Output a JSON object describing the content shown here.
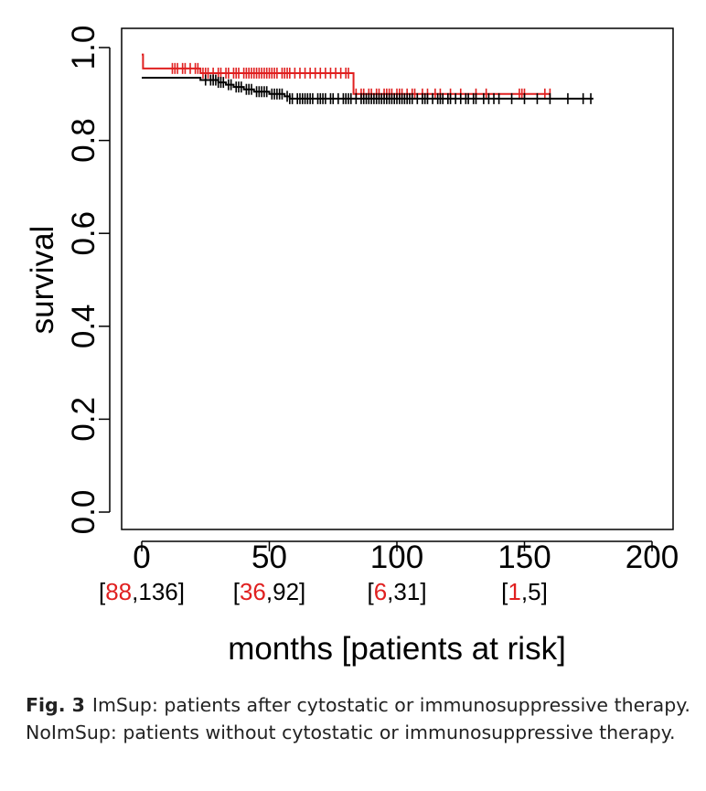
{
  "chart_data": {
    "type": "line",
    "subtype": "kaplan-meier survival curve",
    "ylabel": "survival",
    "xlabel": "months [patients at risk]",
    "xlim": [
      0,
      200
    ],
    "ylim": [
      0.0,
      1.0
    ],
    "x_ticks": [
      0,
      50,
      100,
      150,
      200
    ],
    "y_ticks": [
      0.0,
      0.2,
      0.4,
      0.6,
      0.8,
      1.0
    ],
    "y_tick_labels": [
      "0.0",
      "0.2",
      "0.4",
      "0.6",
      "0.8",
      "1.0"
    ],
    "x_tick_labels": [
      "0",
      "50",
      "100",
      "150",
      "200"
    ],
    "at_risk": [
      {
        "x": 0,
        "red": "88",
        "black": "136"
      },
      {
        "x": 50,
        "red": "36",
        "black": "92"
      },
      {
        "x": 100,
        "red": "6",
        "black": "31"
      },
      {
        "x": 150,
        "red": "1",
        "black": "5"
      }
    ],
    "grid": false,
    "legend": "none",
    "series": [
      {
        "color": "#e02020",
        "steps": [
          [
            0,
            0.985
          ],
          [
            0.5,
            0.955
          ],
          [
            23,
            0.945
          ],
          [
            83,
            0.9
          ],
          [
            150,
            0.9
          ]
        ],
        "end": 160,
        "censor": [
          12,
          13,
          14,
          16,
          17,
          19,
          21,
          22,
          24,
          25,
          26,
          28,
          30,
          31,
          33,
          34,
          36,
          37,
          38,
          40,
          41,
          42,
          43,
          44,
          45,
          46,
          47,
          48,
          49,
          50,
          51,
          52,
          53,
          55,
          56,
          57,
          58,
          60,
          62,
          64,
          66,
          68,
          70,
          72,
          74,
          76,
          78,
          80,
          81,
          84,
          86,
          87,
          89,
          90,
          92,
          93,
          95,
          96,
          97,
          98,
          100,
          101,
          102,
          104,
          106,
          107,
          110,
          112,
          115,
          117,
          121,
          125,
          131,
          135,
          148,
          149,
          150,
          158,
          160
        ]
      },
      {
        "color": "#000000",
        "steps": [
          [
            0,
            0.935
          ],
          [
            23,
            0.93
          ],
          [
            30,
            0.925
          ],
          [
            33,
            0.92
          ],
          [
            36,
            0.915
          ],
          [
            40,
            0.91
          ],
          [
            44,
            0.905
          ],
          [
            50,
            0.9
          ],
          [
            56,
            0.895
          ],
          [
            58,
            0.89
          ],
          [
            160,
            0.89
          ]
        ],
        "end": 177,
        "censor": [
          25,
          27,
          28,
          29,
          30,
          31,
          32,
          34,
          35,
          37,
          38,
          39,
          41,
          42,
          43,
          45,
          46,
          47,
          48,
          49,
          51,
          52,
          53,
          54,
          55,
          57,
          58,
          59,
          61,
          62,
          63,
          64,
          65,
          66,
          67,
          69,
          70,
          71,
          72,
          74,
          75,
          77,
          79,
          80,
          81,
          82,
          84,
          86,
          87,
          88,
          89,
          90,
          91,
          92,
          93,
          94,
          95,
          96,
          97,
          98,
          99,
          100,
          101,
          102,
          103,
          104,
          105,
          106,
          108,
          110,
          111,
          112,
          114,
          116,
          117,
          118,
          120,
          121,
          123,
          125,
          127,
          128,
          130,
          131,
          134,
          136,
          138,
          140,
          145,
          150,
          155,
          160,
          167,
          173,
          176
        ]
      }
    ]
  },
  "caption": {
    "label": "Fig. 3",
    "text": "ImSup: patients after cytostatic or immunosuppressive therapy. NoImSup: patients without cytostatic or immunosuppressive therapy."
  }
}
